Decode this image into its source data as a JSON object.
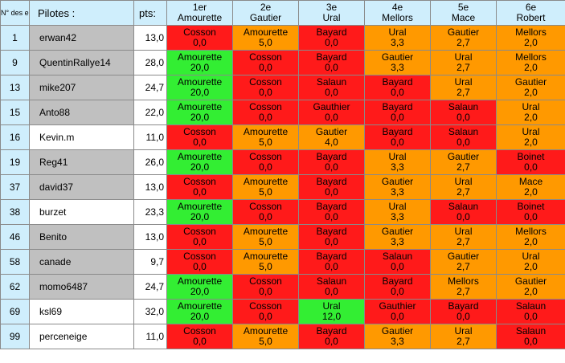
{
  "header": {
    "num_label": "N° des engagés",
    "pilotes_label": "Pilotes :",
    "pts_label": "pts:",
    "ranks": [
      {
        "pos": "1er",
        "name": "Amourette"
      },
      {
        "pos": "2e",
        "name": "Gautier"
      },
      {
        "pos": "3e",
        "name": "Ural"
      },
      {
        "pos": "4e",
        "name": "Mellors"
      },
      {
        "pos": "5e",
        "name": "Mace"
      },
      {
        "pos": "6e",
        "name": "Robert"
      }
    ]
  },
  "colors": {
    "red": "#ff1a1a",
    "orange": "#ff9900",
    "green": "#33ee33",
    "grey": "#c0c0c0",
    "header": "#cfeefc"
  },
  "rows": [
    {
      "num": "1",
      "name": "erwan42",
      "name_bg": "grey",
      "pts": "13,0",
      "cells": [
        {
          "name": "Cosson",
          "score": "0,0",
          "color": "red"
        },
        {
          "name": "Amourette",
          "score": "5,0",
          "color": "orange"
        },
        {
          "name": "Bayard",
          "score": "0,0",
          "color": "red"
        },
        {
          "name": "Ural",
          "score": "3,3",
          "color": "orange"
        },
        {
          "name": "Gautier",
          "score": "2,7",
          "color": "orange"
        },
        {
          "name": "Mellors",
          "score": "2,0",
          "color": "orange"
        }
      ]
    },
    {
      "num": "9",
      "name": "QuentinRallye14",
      "name_bg": "grey",
      "pts": "28,0",
      "cells": [
        {
          "name": "Amourette",
          "score": "20,0",
          "color": "green"
        },
        {
          "name": "Cosson",
          "score": "0,0",
          "color": "red"
        },
        {
          "name": "Bayard",
          "score": "0,0",
          "color": "red"
        },
        {
          "name": "Gautier",
          "score": "3,3",
          "color": "orange"
        },
        {
          "name": "Ural",
          "score": "2,7",
          "color": "orange"
        },
        {
          "name": "Mellors",
          "score": "2,0",
          "color": "orange"
        }
      ]
    },
    {
      "num": "13",
      "name": "mike207",
      "name_bg": "grey",
      "pts": "24,7",
      "cells": [
        {
          "name": "Amourette",
          "score": "20,0",
          "color": "green"
        },
        {
          "name": "Cosson",
          "score": "0,0",
          "color": "red"
        },
        {
          "name": "Salaun",
          "score": "0,0",
          "color": "red"
        },
        {
          "name": "Bayard",
          "score": "0,0",
          "color": "red"
        },
        {
          "name": "Ural",
          "score": "2,7",
          "color": "orange"
        },
        {
          "name": "Gautier",
          "score": "2,0",
          "color": "orange"
        }
      ]
    },
    {
      "num": "15",
      "name": "Anto88",
      "name_bg": "grey",
      "pts": "22,0",
      "cells": [
        {
          "name": "Amourette",
          "score": "20,0",
          "color": "green"
        },
        {
          "name": "Cosson",
          "score": "0,0",
          "color": "red"
        },
        {
          "name": "Gauthier",
          "score": "0,0",
          "color": "red"
        },
        {
          "name": "Bayard",
          "score": "0,0",
          "color": "red"
        },
        {
          "name": "Salaun",
          "score": "0,0",
          "color": "red"
        },
        {
          "name": "Ural",
          "score": "2,0",
          "color": "orange"
        }
      ]
    },
    {
      "num": "16",
      "name": "Kevin.m",
      "name_bg": "white",
      "pts": "11,0",
      "cells": [
        {
          "name": "Cosson",
          "score": "0,0",
          "color": "red"
        },
        {
          "name": "Amourette",
          "score": "5,0",
          "color": "orange"
        },
        {
          "name": "Gautier",
          "score": "4,0",
          "color": "orange"
        },
        {
          "name": "Bayard",
          "score": "0,0",
          "color": "red"
        },
        {
          "name": "Salaun",
          "score": "0,0",
          "color": "red"
        },
        {
          "name": "Ural",
          "score": "2,0",
          "color": "orange"
        }
      ]
    },
    {
      "num": "19",
      "name": "Reg41",
      "name_bg": "grey",
      "pts": "26,0",
      "cells": [
        {
          "name": "Amourette",
          "score": "20,0",
          "color": "green"
        },
        {
          "name": "Cosson",
          "score": "0,0",
          "color": "red"
        },
        {
          "name": "Bayard",
          "score": "0,0",
          "color": "red"
        },
        {
          "name": "Ural",
          "score": "3,3",
          "color": "orange"
        },
        {
          "name": "Gautier",
          "score": "2,7",
          "color": "orange"
        },
        {
          "name": "Boinet",
          "score": "0,0",
          "color": "red"
        }
      ]
    },
    {
      "num": "37",
      "name": "david37",
      "name_bg": "grey",
      "pts": "13,0",
      "cells": [
        {
          "name": "Cosson",
          "score": "0,0",
          "color": "red"
        },
        {
          "name": "Amourette",
          "score": "5,0",
          "color": "orange"
        },
        {
          "name": "Bayard",
          "score": "0,0",
          "color": "red"
        },
        {
          "name": "Gautier",
          "score": "3,3",
          "color": "orange"
        },
        {
          "name": "Ural",
          "score": "2,7",
          "color": "orange"
        },
        {
          "name": "Mace",
          "score": "2,0",
          "color": "orange"
        }
      ]
    },
    {
      "num": "38",
      "name": "burzet",
      "name_bg": "white",
      "pts": "23,3",
      "cells": [
        {
          "name": "Amourette",
          "score": "20,0",
          "color": "green"
        },
        {
          "name": "Cosson",
          "score": "0,0",
          "color": "red"
        },
        {
          "name": "Bayard",
          "score": "0,0",
          "color": "red"
        },
        {
          "name": "Ural",
          "score": "3,3",
          "color": "orange"
        },
        {
          "name": "Salaun",
          "score": "0,0",
          "color": "red"
        },
        {
          "name": "Boinet",
          "score": "0,0",
          "color": "red"
        }
      ]
    },
    {
      "num": "46",
      "name": "Benito",
      "name_bg": "grey",
      "pts": "13,0",
      "cells": [
        {
          "name": "Cosson",
          "score": "0,0",
          "color": "red"
        },
        {
          "name": "Amourette",
          "score": "5,0",
          "color": "orange"
        },
        {
          "name": "Bayard",
          "score": "0,0",
          "color": "red"
        },
        {
          "name": "Gautier",
          "score": "3,3",
          "color": "orange"
        },
        {
          "name": "Ural",
          "score": "2,7",
          "color": "orange"
        },
        {
          "name": "Mellors",
          "score": "2,0",
          "color": "orange"
        }
      ]
    },
    {
      "num": "58",
      "name": "canade",
      "name_bg": "grey",
      "pts": "9,7",
      "cells": [
        {
          "name": "Cosson",
          "score": "0,0",
          "color": "red"
        },
        {
          "name": "Amourette",
          "score": "5,0",
          "color": "orange"
        },
        {
          "name": "Bayard",
          "score": "0,0",
          "color": "red"
        },
        {
          "name": "Salaun",
          "score": "0,0",
          "color": "red"
        },
        {
          "name": "Gautier",
          "score": "2,7",
          "color": "orange"
        },
        {
          "name": "Ural",
          "score": "2,0",
          "color": "orange"
        }
      ]
    },
    {
      "num": "62",
      "name": "momo6487",
      "name_bg": "grey",
      "pts": "24,7",
      "cells": [
        {
          "name": "Amourette",
          "score": "20,0",
          "color": "green"
        },
        {
          "name": "Cosson",
          "score": "0,0",
          "color": "red"
        },
        {
          "name": "Salaun",
          "score": "0,0",
          "color": "red"
        },
        {
          "name": "Bayard",
          "score": "0,0",
          "color": "red"
        },
        {
          "name": "Mellors",
          "score": "2,7",
          "color": "orange"
        },
        {
          "name": "Gautier",
          "score": "2,0",
          "color": "orange"
        }
      ]
    },
    {
      "num": "69",
      "name": "ksl69",
      "name_bg": "white",
      "pts": "32,0",
      "cells": [
        {
          "name": "Amourette",
          "score": "20,0",
          "color": "green"
        },
        {
          "name": "Cosson",
          "score": "0,0",
          "color": "red"
        },
        {
          "name": "Ural",
          "score": "12,0",
          "color": "green"
        },
        {
          "name": "Gauthier",
          "score": "0,0",
          "color": "red"
        },
        {
          "name": "Bayard",
          "score": "0,0",
          "color": "red"
        },
        {
          "name": "Salaun",
          "score": "0,0",
          "color": "red"
        }
      ]
    },
    {
      "num": "99",
      "name": "perceneige",
      "name_bg": "white",
      "pts": "11,0",
      "cells": [
        {
          "name": "Cosson",
          "score": "0,0",
          "color": "red"
        },
        {
          "name": "Amourette",
          "score": "5,0",
          "color": "orange"
        },
        {
          "name": "Bayard",
          "score": "0,0",
          "color": "red"
        },
        {
          "name": "Gautier",
          "score": "3,3",
          "color": "orange"
        },
        {
          "name": "Ural",
          "score": "2,7",
          "color": "orange"
        },
        {
          "name": "Salaun",
          "score": "0,0",
          "color": "red"
        }
      ]
    }
  ]
}
